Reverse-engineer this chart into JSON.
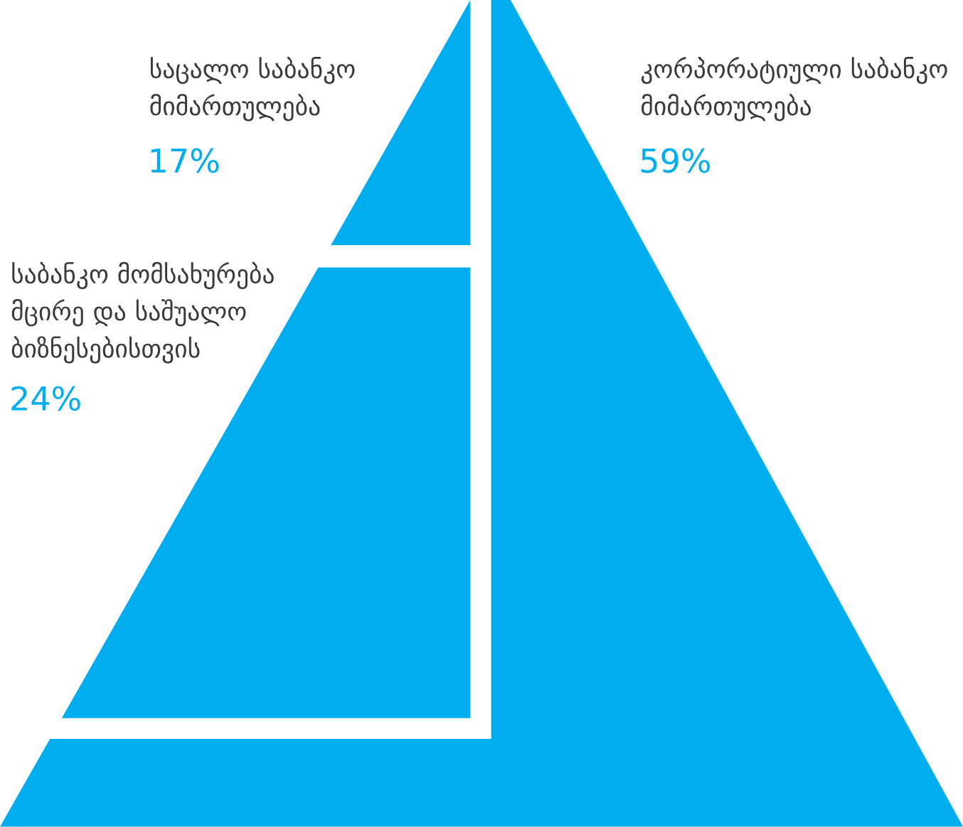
{
  "chart_data": {
    "type": "other",
    "categories": [
      "საცალო საბანკო მიმართულება",
      "საბანკო მომსახურება მცირე და საშუალო ბიზნესებისთვის",
      "კორპორატიული საბანკო მიმართულება"
    ],
    "values": [
      17,
      24,
      59
    ],
    "value_labels": [
      "17%",
      "24%",
      "59%"
    ],
    "colors": [
      "#00aeef",
      "#00aeef",
      "#00aeef"
    ]
  }
}
